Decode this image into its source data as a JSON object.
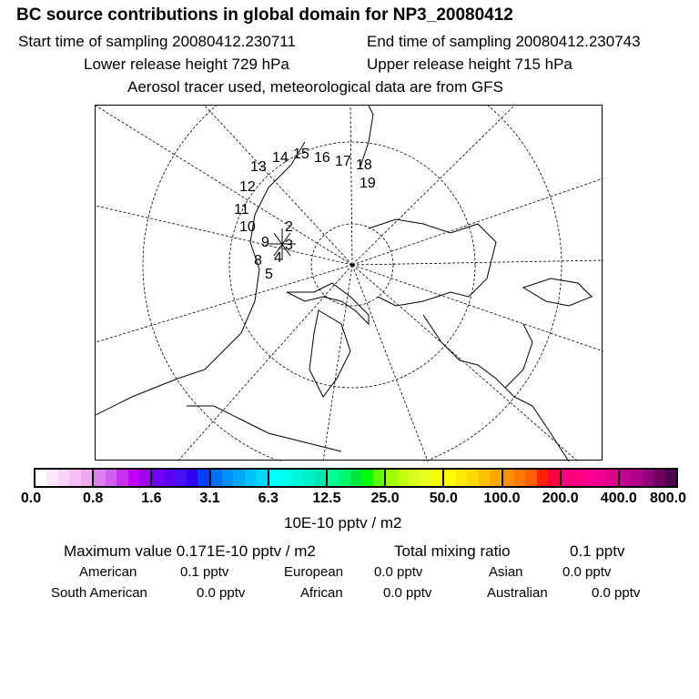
{
  "title": "BC  source contributions in global domain for NP3_20080412",
  "start_time": "Start time of sampling 20080412.230711",
  "end_time": "End time of sampling 20080412.230743",
  "lower_height": "Lower release height  729 hPa",
  "upper_height": "Upper release height  715 hPa",
  "tracer_info": "Aerosol tracer used, meteorological data are from GFS",
  "trajectory_labels": [
    "2",
    "3",
    "4",
    "5",
    "8",
    "9",
    "10",
    "11",
    "12",
    "13",
    "14",
    "15",
    "16",
    "17",
    "18",
    "19"
  ],
  "colorbar": {
    "ticks": [
      "0.0",
      "0.8",
      "1.6",
      "3.1",
      "6.3",
      "12.5",
      "25.0",
      "50.0",
      "100.0",
      "200.0",
      "400.0",
      "800.0"
    ],
    "segments": [
      [
        "#ffffff",
        "#fce6fc",
        "#f8d2f8",
        "#f4bef4",
        "#f0aaf0"
      ],
      [
        "#e080f0",
        "#d060f0",
        "#c830f0",
        "#c000f8",
        "#a000f0"
      ],
      [
        "#7000f8",
        "#6000f0",
        "#4810f8",
        "#3000f0",
        "#0040ff"
      ],
      [
        "#0070ff",
        "#0090ff",
        "#00a8ff",
        "#00c0ff",
        "#00d8ff"
      ],
      [
        "#00ffff",
        "#00ffe8",
        "#00f8d8",
        "#00f0c8",
        "#00e8b0"
      ],
      [
        "#00ff90",
        "#00f870",
        "#00e840",
        "#00ff00",
        "#60ff00"
      ],
      [
        "#a0ff00",
        "#c0ff10",
        "#d8ff20",
        "#e8ff20",
        "#f8ff00"
      ],
      [
        "#ffff00",
        "#ffe800",
        "#ffd800",
        "#ffc000",
        "#ffa800"
      ],
      [
        "#ff9000",
        "#ff7800",
        "#ff6000",
        "#ff2000",
        "#ff0040"
      ],
      [
        "#ff0080",
        "#ff0080",
        "#ff0090",
        "#f00090",
        "#e00090"
      ],
      [
        "#c00090",
        "#b00088",
        "#900080",
        "#700060",
        "#500050"
      ]
    ],
    "units": "10E-10 pptv / m2"
  },
  "summary": {
    "max_value": "Maximum value  0.171E-10 pptv / m2",
    "total_label": "Total mixing ratio",
    "total_value": "0.1 pptv",
    "regions": [
      {
        "label": "American",
        "value": "0.1 pptv"
      },
      {
        "label": "European",
        "value": "0.0 pptv"
      },
      {
        "label": "Asian",
        "value": "0.0 pptv"
      },
      {
        "label": "South American",
        "value": "0.0 pptv"
      },
      {
        "label": "African",
        "value": "0.0 pptv"
      },
      {
        "label": "Australian",
        "value": "0.0 pptv"
      }
    ]
  }
}
